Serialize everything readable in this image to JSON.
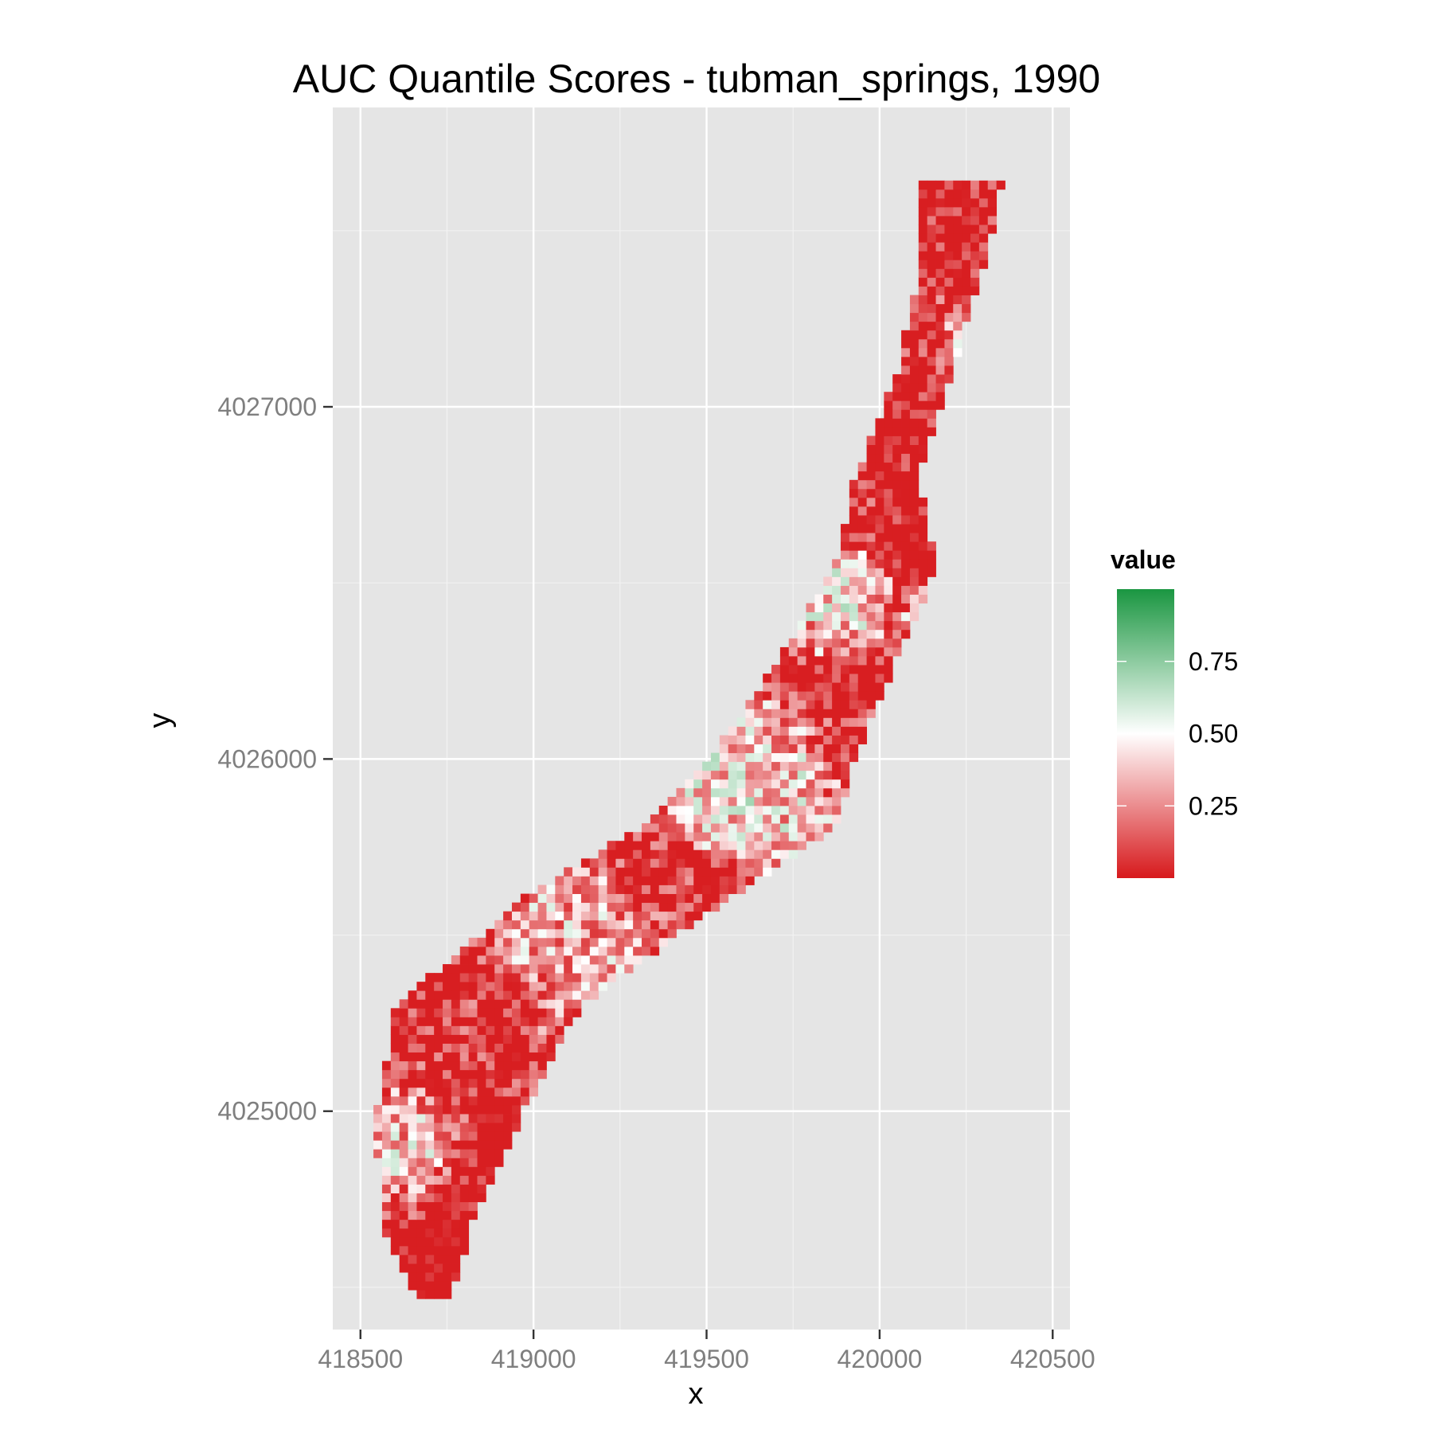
{
  "chart_data": {
    "type": "heatmap",
    "title": "AUC Quantile Scores - tubman_springs, 1990",
    "xlabel": "x",
    "ylabel": "y",
    "xlim": [
      418420,
      420550
    ],
    "ylim": [
      4024380,
      4027850
    ],
    "x_ticks": [
      418500,
      419000,
      419500,
      420000,
      420500
    ],
    "x_tick_labels": [
      "418500",
      "419000",
      "419500",
      "420000",
      "420500"
    ],
    "y_ticks": [
      4025000,
      4026000,
      4027000
    ],
    "y_tick_labels": [
      "4025000",
      "4026000",
      "4027000"
    ],
    "grid": true,
    "panel_background": "#e5e5e5",
    "grid_color": "#ffffff",
    "cell_size": 25,
    "legend": {
      "title": "value",
      "position": "right",
      "breaks": [
        0.25,
        0.5,
        0.75
      ],
      "labels": [
        "0.25",
        "0.50",
        "0.75"
      ],
      "range": [
        0,
        1
      ],
      "colors": {
        "low": "#d7191c",
        "mid": "#ffffff",
        "high": "#1a9641"
      }
    },
    "strip": {
      "description": "raster cells follow a curved strip; each center point gives the strip center (x, y) and half-width in x",
      "centers": [
        {
          "y": 4024480,
          "x": 418710,
          "half_width": 60
        },
        {
          "y": 4024700,
          "x": 418690,
          "half_width": 150
        },
        {
          "y": 4025000,
          "x": 418760,
          "half_width": 230
        },
        {
          "y": 4025300,
          "x": 418870,
          "half_width": 290
        },
        {
          "y": 4025600,
          "x": 419260,
          "half_width": 320
        },
        {
          "y": 4025800,
          "x": 419580,
          "half_width": 310
        },
        {
          "y": 4026000,
          "x": 419720,
          "half_width": 230
        },
        {
          "y": 4026250,
          "x": 419860,
          "half_width": 190
        },
        {
          "y": 4026550,
          "x": 420020,
          "half_width": 160
        },
        {
          "y": 4026800,
          "x": 420020,
          "half_width": 100
        },
        {
          "y": 4027100,
          "x": 420130,
          "half_width": 85
        },
        {
          "y": 4027400,
          "x": 420210,
          "half_width": 100
        },
        {
          "y": 4027650,
          "x": 420240,
          "half_width": 130
        }
      ],
      "regions": [
        {
          "x": 418640,
          "y": 4024880,
          "r": 120,
          "value": 0.8
        },
        {
          "x": 418740,
          "y": 4024620,
          "r": 130,
          "value": 0.05
        },
        {
          "x": 418860,
          "y": 4024900,
          "r": 100,
          "value": 0.12
        },
        {
          "x": 419100,
          "y": 4025500,
          "r": 130,
          "value": 0.78
        },
        {
          "x": 419250,
          "y": 4025350,
          "r": 160,
          "value": 0.58
        },
        {
          "x": 419600,
          "y": 4025950,
          "r": 150,
          "value": 0.9
        },
        {
          "x": 419760,
          "y": 4025780,
          "r": 120,
          "value": 0.72
        },
        {
          "x": 419650,
          "y": 4025350,
          "r": 120,
          "value": 0.1
        },
        {
          "x": 419880,
          "y": 4026450,
          "r": 100,
          "value": 0.88
        },
        {
          "x": 420200,
          "y": 4026400,
          "r": 80,
          "value": 0.9
        },
        {
          "x": 420150,
          "y": 4026600,
          "r": 90,
          "value": 0.1
        },
        {
          "x": 420280,
          "y": 4027200,
          "r": 60,
          "value": 0.85
        },
        {
          "x": 420150,
          "y": 4027500,
          "r": 110,
          "value": 0.2
        },
        {
          "x": 420050,
          "y": 4026950,
          "r": 120,
          "value": 0.15
        }
      ],
      "base_value": 0.3,
      "seed": 1990
    }
  }
}
